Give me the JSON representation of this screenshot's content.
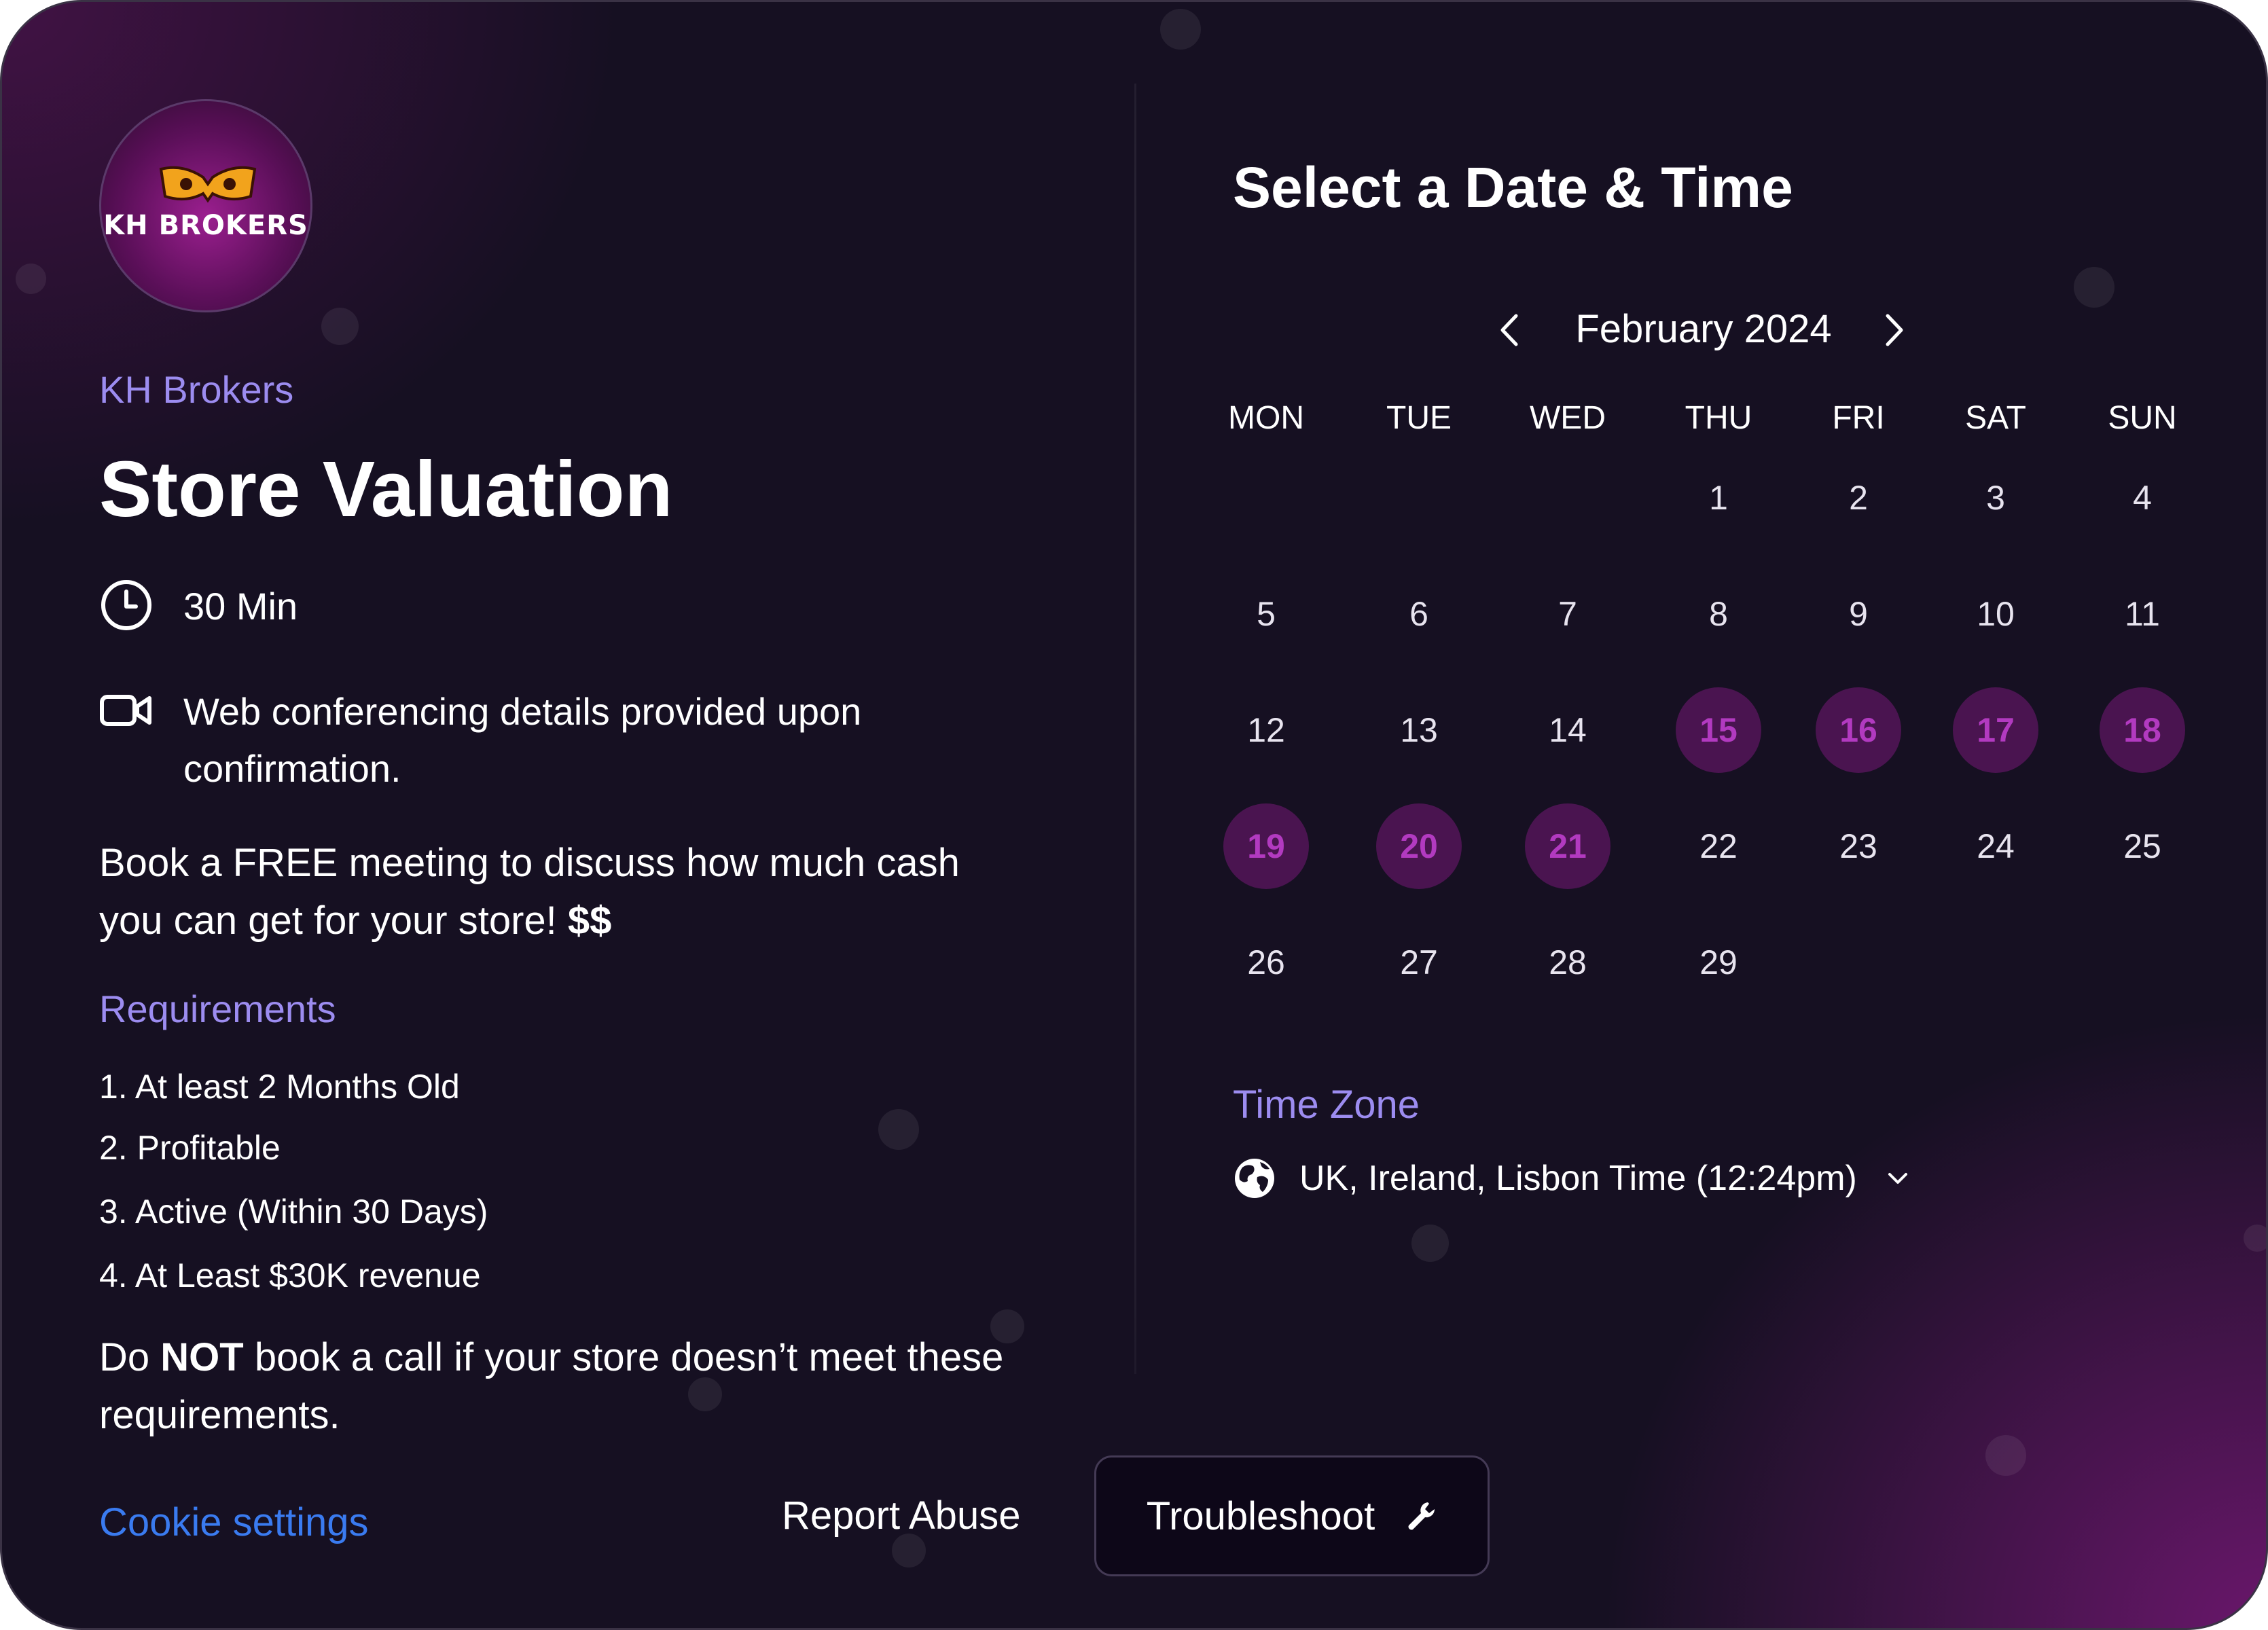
{
  "organizer": {
    "logo_text": "KH BROKERS",
    "name": "KH Brokers"
  },
  "event": {
    "title": "Store Valuation",
    "duration": "30 Min",
    "conferencing": "Web conferencing details provided upon confirmation.",
    "description_main": "Book a FREE meeting to discuss how much cash you can get for your store! ",
    "description_bold": "$$",
    "requirements_title": "Requirements",
    "requirements": [
      "1. At least 2 Months Old",
      "2. Profitable",
      "3. Active (Within 30 Days)",
      "4. At Least $30K revenue"
    ],
    "warning_pre": "Do ",
    "warning_bold": "NOT",
    "warning_post": " book a call if your store doesn’t meet these requirements."
  },
  "footer": {
    "cookie_settings": "Cookie settings",
    "report_abuse": "Report Abuse",
    "troubleshoot": "Troubleshoot"
  },
  "calendar": {
    "heading": "Select a Date & Time",
    "month_label": "February 2024",
    "weekdays": [
      "MON",
      "TUE",
      "WED",
      "THU",
      "FRI",
      "SAT",
      "SUN"
    ],
    "first_weekday_index": 3,
    "days_in_month": 29,
    "available_days": [
      15,
      16,
      17,
      18,
      19,
      20,
      21
    ]
  },
  "timezone": {
    "label": "Time Zone",
    "value": "UK, Ireland, Lisbon Time (12:24pm)"
  },
  "colors": {
    "accent": "#9c8cf0",
    "link": "#3a7bf0",
    "available_bg": "#4a1450",
    "available_text": "#b23ac0"
  },
  "icons": {
    "duration": "clock-icon",
    "conferencing": "video-camera-icon",
    "timezone": "globe-icon",
    "troubleshoot": "wrench-icon",
    "prev": "chevron-left-icon",
    "next": "chevron-right-icon"
  }
}
